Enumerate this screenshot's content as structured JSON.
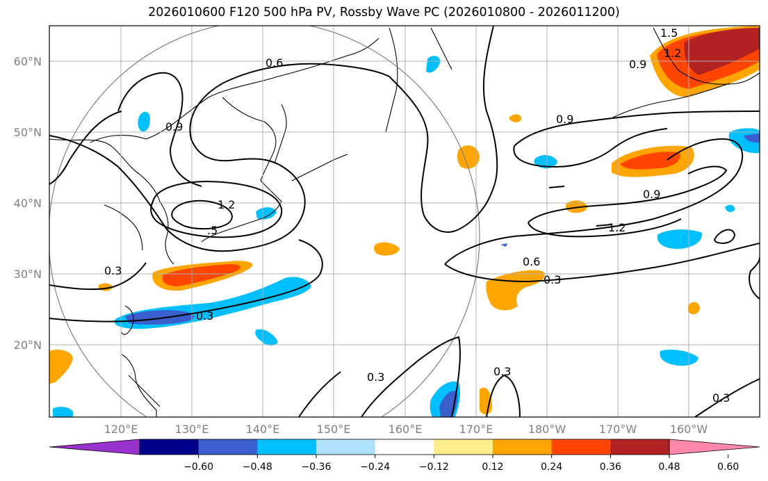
{
  "title": "2026010600 F120 500 hPa PV, Rossby Wave PC (2026010800 - 2026011200)",
  "lat_labels": [
    "60°N",
    "50°N",
    "40°N",
    "30°N",
    "20°N"
  ],
  "lon_labels": [
    "120°E",
    "130°E",
    "140°E",
    "150°E",
    "160°E",
    "170°E",
    "180°W",
    "170°W",
    "160°W"
  ],
  "contour_labels": [
    "1.5",
    "1.2",
    "0.9",
    "0.6",
    "0.9",
    "0.9",
    "0.9",
    "1.2",
    "1.2",
    ".5",
    "0.6",
    "0.3",
    "0.3",
    "0.3",
    "0.3",
    "0.3",
    "0.3"
  ],
  "colorbar": {
    "ticks": [
      "−0.60",
      "−0.48",
      "−0.36",
      "−0.24",
      "−0.12",
      "0.12",
      "0.24",
      "0.36",
      "0.48",
      "0.60"
    ],
    "colors": [
      "#9932cc",
      "#00008b",
      "#3a5fcd",
      "#00bfff",
      "#b0e2ff",
      "#ffffff",
      "#ffec8b",
      "#ffa500",
      "#ff4500",
      "#b22222",
      "#ff88aa"
    ]
  },
  "shading_colors": {
    "neg_strong": "#3a5fcd",
    "neg_mid": "#00bfff",
    "neg_weak": "#b0e2ff",
    "pos_weak": "#ffec8b",
    "pos_mid": "#ffa500",
    "pos_strong": "#ff4500",
    "pos_max": "#b22222"
  }
}
